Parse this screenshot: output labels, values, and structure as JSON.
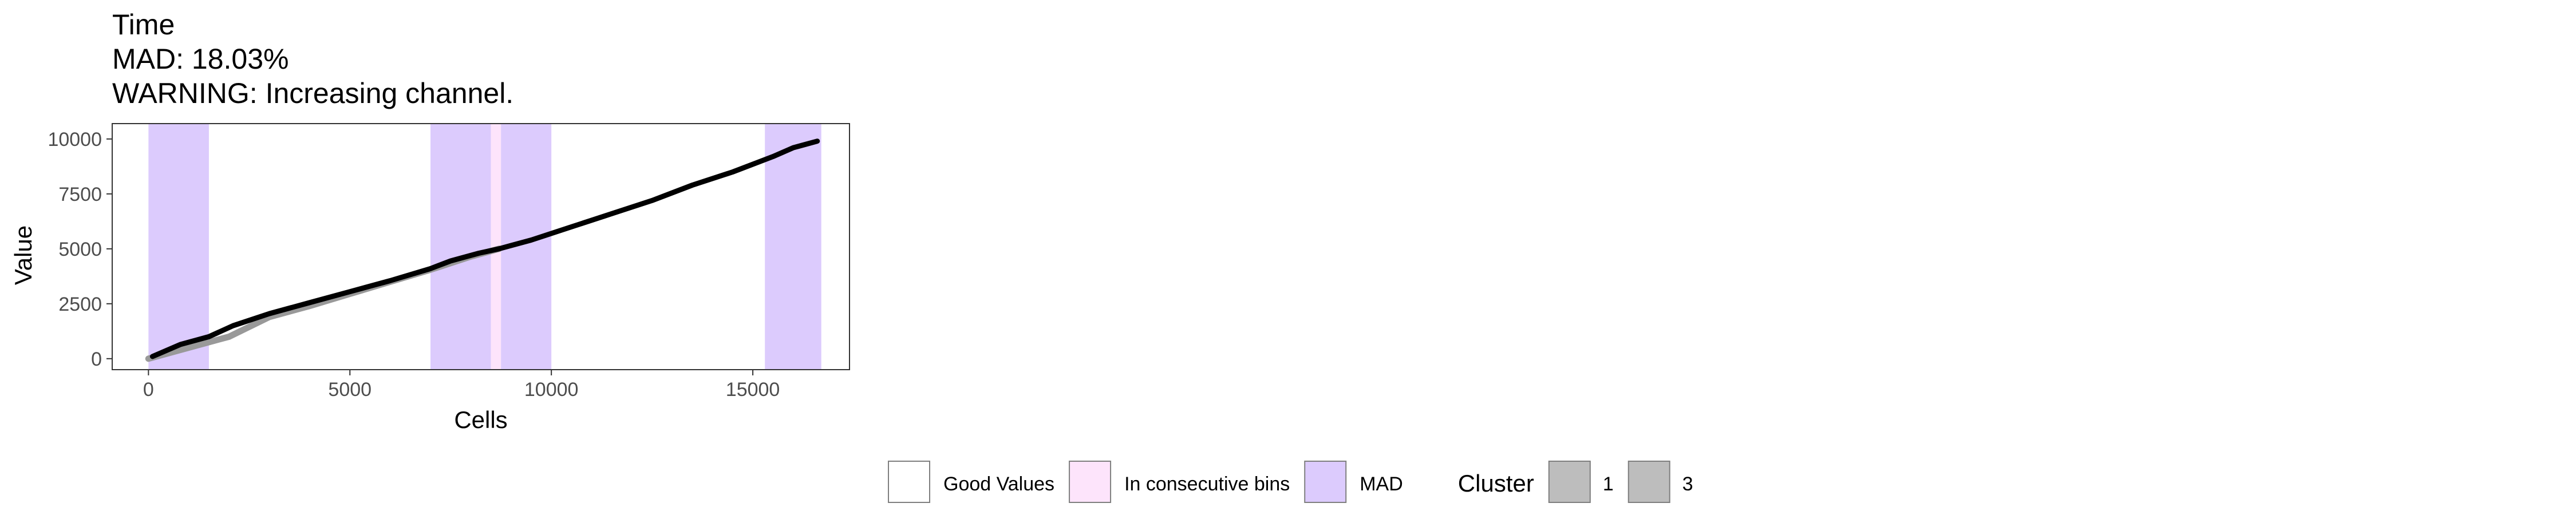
{
  "chart_data": {
    "type": "line",
    "title_lines": [
      "Time",
      "MAD: 18.03%",
      "WARNING: Increasing channel."
    ],
    "xlabel": "Cells",
    "ylabel": "Value",
    "xlim": [
      -900,
      17400
    ],
    "ylim": [
      -500,
      10700
    ],
    "x_ticks": [
      0,
      5000,
      10000,
      15000
    ],
    "x_tick_labels": [
      "0",
      "5000",
      "10000",
      "15000"
    ],
    "y_ticks": [
      0,
      2500,
      5000,
      7500,
      10000
    ],
    "y_tick_labels": [
      "0",
      "2500",
      "5000",
      "7500",
      "10000"
    ],
    "grid": false,
    "bands": [
      {
        "category": "MAD",
        "x0": 0,
        "x1": 1500
      },
      {
        "category": "MAD",
        "x0": 7000,
        "x1": 8500
      },
      {
        "category": "In consecutive bins",
        "x0": 8500,
        "x1": 8750
      },
      {
        "category": "MAD",
        "x0": 8750,
        "x1": 10000
      },
      {
        "category": "MAD",
        "x0": 15300,
        "x1": 16700
      }
    ],
    "series": [
      {
        "cluster": "1",
        "color": "#999999",
        "x": [
          0,
          1000,
          2000,
          3000,
          4000,
          5000,
          6000,
          7000,
          8000,
          8700
        ],
        "y": [
          0,
          500,
          1000,
          1900,
          2400,
          2950,
          3500,
          4050,
          4650,
          5000
        ]
      },
      {
        "cluster": "3",
        "color": "#000000",
        "x": [
          100,
          800,
          1500,
          2100,
          3000,
          4000,
          5000,
          6000,
          7000,
          7500,
          8200,
          8700,
          9500,
          10500,
          11500,
          12500,
          13500,
          14500,
          15500,
          16000,
          16600
        ],
        "y": [
          100,
          650,
          1000,
          1500,
          2050,
          2550,
          3050,
          3550,
          4100,
          4450,
          4800,
          5000,
          5400,
          6000,
          6600,
          7200,
          7900,
          8500,
          9200,
          9600,
          9900
        ]
      }
    ],
    "legend": {
      "fill_items": [
        {
          "label": "Good Values",
          "color": "#ffffff"
        },
        {
          "label": "In consecutive bins",
          "color": "#fde4fb"
        },
        {
          "label": "MAD",
          "color": "#dccbfd"
        }
      ],
      "cluster_title": "Cluster",
      "cluster_items": [
        {
          "label": "1",
          "color": "#bdbdbd"
        },
        {
          "label": "3",
          "color": "#bdbdbd"
        }
      ]
    }
  },
  "colors": {
    "mad_band": "#dccbfd",
    "consecutive_band": "#fde4fb",
    "panel_border": "#333333",
    "tick_text": "#4d4d4d"
  }
}
